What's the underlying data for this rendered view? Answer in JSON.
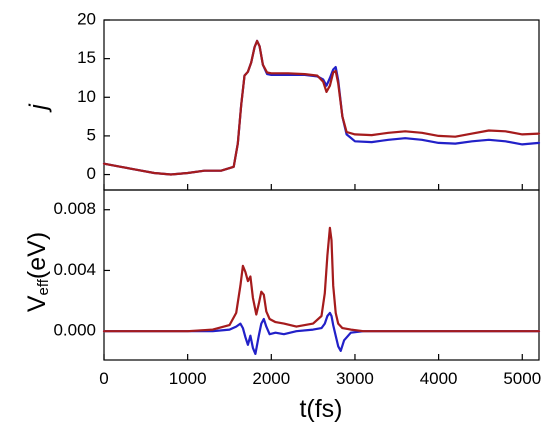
{
  "chart_data": [
    {
      "type": "line",
      "panel": "top",
      "ylabel": "j",
      "xlim": [
        0,
        5200
      ],
      "ylim": [
        -2,
        20
      ],
      "yticks": [
        "0",
        "5",
        "10",
        "15",
        "20"
      ],
      "ytick_values": [
        0,
        5,
        10,
        15,
        20
      ],
      "colors": {
        "red": "#a51c1c",
        "blue": "#2121c8",
        "halo": "#f7b9ee"
      },
      "series": [
        {
          "color": "red",
          "x": [
            0,
            200,
            400,
            600,
            800,
            1000,
            1200,
            1400,
            1550,
            1600,
            1640,
            1680,
            1720,
            1760,
            1800,
            1830,
            1860,
            1900,
            1950,
            2000,
            2200,
            2400,
            2550,
            2620,
            2660,
            2700,
            2740,
            2770,
            2800,
            2850,
            2900,
            3000,
            3200,
            3400,
            3600,
            3800,
            4000,
            4200,
            4400,
            4600,
            4800,
            5000,
            5200
          ],
          "y": [
            1.4,
            1.0,
            0.6,
            0.2,
            0.0,
            0.2,
            0.5,
            0.5,
            1.0,
            4.0,
            9.0,
            12.8,
            13.3,
            14.5,
            16.5,
            17.3,
            16.6,
            14.2,
            13.2,
            13.1,
            13.1,
            13.0,
            12.8,
            12.0,
            10.7,
            11.5,
            13.2,
            13.4,
            11.8,
            7.5,
            5.5,
            5.2,
            5.1,
            5.4,
            5.6,
            5.4,
            5.0,
            4.9,
            5.3,
            5.7,
            5.6,
            5.2,
            5.3
          ]
        },
        {
          "color": "blue",
          "x": [
            0,
            200,
            400,
            600,
            800,
            1000,
            1200,
            1400,
            1550,
            1600,
            1640,
            1680,
            1720,
            1760,
            1800,
            1830,
            1860,
            1900,
            1950,
            2000,
            2200,
            2400,
            2550,
            2620,
            2660,
            2700,
            2740,
            2770,
            2800,
            2850,
            2900,
            3000,
            3200,
            3400,
            3600,
            3800,
            4000,
            4200,
            4400,
            4600,
            4800,
            5000,
            5200
          ],
          "y": [
            1.4,
            1.0,
            0.6,
            0.2,
            0.0,
            0.2,
            0.5,
            0.5,
            1.0,
            4.0,
            9.0,
            12.8,
            13.3,
            14.5,
            16.5,
            17.3,
            16.6,
            14.2,
            13.0,
            12.9,
            12.9,
            12.9,
            12.7,
            12.3,
            11.5,
            12.5,
            13.6,
            13.9,
            12.2,
            7.5,
            5.2,
            4.3,
            4.2,
            4.5,
            4.7,
            4.5,
            4.1,
            4.0,
            4.3,
            4.5,
            4.3,
            3.9,
            4.1
          ]
        }
      ]
    },
    {
      "type": "line",
      "panel": "bottom",
      "ylabel": "V",
      "ylabel_sub": "eff",
      "ylabel_unit": "(eV)",
      "xlabel": "t(fs)",
      "xlim": [
        0,
        5200
      ],
      "ylim": [
        -0.0019,
        0.0093
      ],
      "xticks": [
        "0",
        "1000",
        "2000",
        "3000",
        "4000",
        "5000"
      ],
      "xtick_values": [
        0,
        1000,
        2000,
        3000,
        4000,
        5000
      ],
      "yticks": [
        "0.000",
        "0.004",
        "0.008"
      ],
      "ytick_values": [
        0.0,
        0.004,
        0.008
      ],
      "series": [
        {
          "color": "red",
          "x": [
            0,
            500,
            1000,
            1300,
            1500,
            1580,
            1630,
            1660,
            1690,
            1720,
            1750,
            1780,
            1820,
            1850,
            1880,
            1910,
            1940,
            1980,
            2050,
            2150,
            2300,
            2500,
            2600,
            2640,
            2670,
            2700,
            2720,
            2740,
            2770,
            2800,
            2850,
            2950,
            3100,
            3500,
            4000,
            4500,
            5000,
            5200
          ],
          "y": [
            0.0,
            0.0,
            0.0,
            0.0001,
            0.0004,
            0.0012,
            0.003,
            0.0043,
            0.0039,
            0.0033,
            0.0036,
            0.0022,
            0.0011,
            0.0018,
            0.0026,
            0.0024,
            0.0013,
            0.0008,
            0.0006,
            0.0005,
            0.0003,
            0.0005,
            0.001,
            0.0025,
            0.005,
            0.0068,
            0.006,
            0.003,
            0.0012,
            0.0005,
            0.0002,
            0.0001,
            0.0,
            0.0,
            0.0,
            0.0,
            0.0,
            0.0
          ]
        },
        {
          "color": "blue",
          "x": [
            0,
            500,
            1000,
            1300,
            1500,
            1580,
            1630,
            1660,
            1690,
            1720,
            1750,
            1780,
            1810,
            1850,
            1880,
            1910,
            1940,
            1980,
            2050,
            2150,
            2300,
            2500,
            2600,
            2640,
            2670,
            2700,
            2720,
            2740,
            2770,
            2800,
            2830,
            2870,
            2950,
            3100,
            3500,
            4000,
            4500,
            5000,
            5200
          ],
          "y": [
            0.0,
            0.0,
            0.0,
            0.0,
            0.0001,
            0.0003,
            0.0005,
            0.0002,
            -0.0004,
            -0.0009,
            -0.0003,
            -0.0011,
            -0.0015,
            -0.0003,
            0.0005,
            0.0008,
            0.0003,
            -0.0002,
            -0.0001,
            -0.0002,
            0.0,
            0.0001,
            0.0002,
            0.0005,
            0.001,
            0.0012,
            0.001,
            0.0004,
            -0.0003,
            -0.001,
            -0.0013,
            -0.0006,
            -0.0001,
            0.0,
            0.0,
            0.0,
            0.0,
            0.0,
            0.0
          ]
        }
      ]
    }
  ]
}
